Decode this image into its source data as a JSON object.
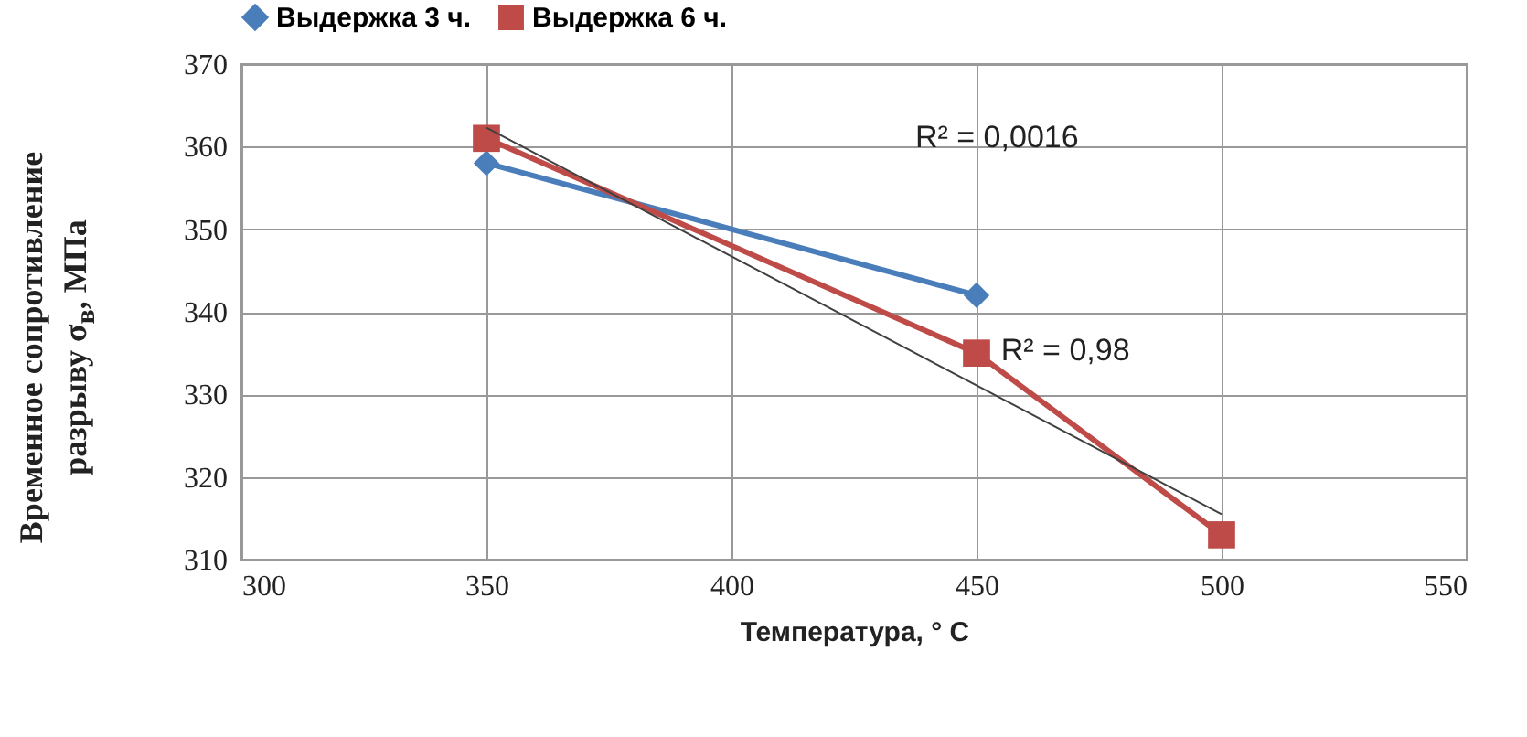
{
  "chart_data": {
    "type": "line",
    "xlabel": "Температура, ° C",
    "ylabel": "Временное сопротивление разрыву σ$_{в}$, МПа",
    "xlim": [
      300,
      550
    ],
    "xticks": [
      300,
      350,
      400,
      450,
      500,
      550
    ],
    "ylim": [
      310,
      370
    ],
    "yticks": [
      310,
      320,
      330,
      340,
      350,
      360,
      370
    ],
    "grid": true,
    "legend": "top",
    "series": [
      {
        "name": "Выдержка 3 ч.",
        "color": "#4a7ebb",
        "marker": "diamond",
        "x": [
          350,
          450
        ],
        "values": [
          358,
          342
        ]
      },
      {
        "name": "Выдержка 6 ч.",
        "color": "#be4b48",
        "marker": "square",
        "x": [
          350,
          450,
          500
        ],
        "values": [
          361,
          335,
          313
        ]
      },
      {
        "type": "line",
        "color": "#404040",
        "marker": "none",
        "x": [
          350,
          500
        ],
        "values": [
          362.3,
          315.5
        ]
      }
    ],
    "annotations": [
      "R² = 0,0016",
      "R² = 0,98"
    ]
  }
}
